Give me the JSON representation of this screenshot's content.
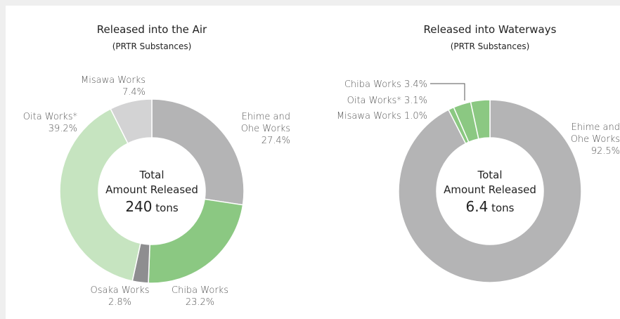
{
  "chart_data": [
    {
      "type": "pie",
      "title": "Released into the Air",
      "subtitle": "(PRTR Substances)",
      "center_label": [
        "Total",
        "Amount Released"
      ],
      "total": 240,
      "total_unit": "tons",
      "categories": [
        "Ehime and Ohe Works",
        "Chiba Works",
        "Osaka Works",
        "Oita Works*",
        "Misawa Works"
      ],
      "values": [
        27.4,
        23.2,
        2.8,
        39.2,
        7.4
      ],
      "value_labels": [
        "27.4%",
        "23.2%",
        "2.8%",
        "39.2%",
        "7.4%"
      ],
      "colors": [
        "#b4b4b5",
        "#8bc882",
        "#8e8e90",
        "#c6e4c0",
        "#d3d3d4"
      ]
    },
    {
      "type": "pie",
      "title": "Released into Waterways",
      "subtitle": "(PRTR Substances)",
      "center_label": [
        "Total",
        "Amount Released"
      ],
      "total": 6.4,
      "total_unit": "tons",
      "categories": [
        "Ehime and Ohe Works",
        "Misawa Works",
        "Oita Works*",
        "Chiba Works"
      ],
      "values": [
        92.5,
        1.0,
        3.1,
        3.4
      ],
      "value_labels": [
        "92.5%",
        "1.0%",
        "3.1%",
        "3.4%"
      ],
      "colors": [
        "#b4b4b5",
        "#8bc882",
        "#8bc882",
        "#8bc882"
      ]
    }
  ]
}
